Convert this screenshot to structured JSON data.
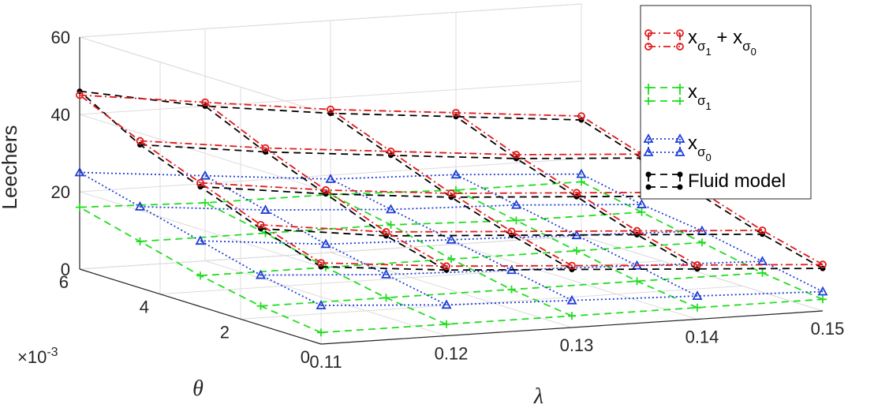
{
  "chart_data": {
    "type": "line",
    "chart_kind": "3d-line",
    "title": "",
    "xlabel": "λ",
    "ylabel": "θ",
    "zlabel": "Leechers",
    "y_exponent": "×10",
    "y_exponent_power": "-3",
    "x_ticks": [
      "0.11",
      "0.12",
      "0.13",
      "0.14",
      "0.15"
    ],
    "y_ticks": [
      "0",
      "2",
      "4",
      "6"
    ],
    "z_ticks": [
      "0",
      "20",
      "40",
      "60"
    ],
    "xlim": [
      0.11,
      0.15
    ],
    "ylim": [
      0,
      6
    ],
    "zlim": [
      0,
      60
    ],
    "grid": true,
    "legend_position": "top-right",
    "lambda": [
      0.11,
      0.12,
      0.13,
      0.14,
      0.15
    ],
    "theta": [
      0,
      1.5,
      3,
      4.5,
      6
    ],
    "series": [
      {
        "name": "x_σ1 + x_σ0",
        "legend": {
          "base": "x",
          "sub1": "σ",
          "sub2": "1",
          "mid": " + x",
          "sub3": "σ",
          "sub4": "0"
        },
        "color": "#e41a1c",
        "marker": "circle",
        "line_style": "dash-dot",
        "values": [
          [
            21,
            18,
            16,
            14,
            12
          ],
          [
            26,
            22,
            20,
            18,
            16
          ],
          [
            32,
            28,
            25,
            23,
            21
          ],
          [
            38,
            34,
            31,
            28,
            26
          ],
          [
            45,
            41,
            37,
            34,
            31
          ]
        ]
      },
      {
        "name": "x_σ1",
        "legend": {
          "base": "x",
          "sub1": "σ",
          "sub2": "1"
        },
        "color": "#22dd22",
        "marker": "plus",
        "line_style": "dashed",
        "values": [
          [
            3,
            3,
            3,
            3,
            3
          ],
          [
            5,
            5,
            5,
            5,
            5
          ],
          [
            8,
            8,
            8,
            8,
            8
          ],
          [
            12,
            12,
            12,
            11,
            11
          ],
          [
            16,
            15,
            15,
            14,
            14
          ]
        ]
      },
      {
        "name": "x_σ0",
        "legend": {
          "base": "x",
          "sub1": "σ",
          "sub2": "0"
        },
        "color": "#1f3fd6",
        "marker": "triangle",
        "line_style": "dotted",
        "values": [
          [
            10,
            8,
            7,
            6,
            5
          ],
          [
            13,
            11,
            10,
            9,
            8
          ],
          [
            17,
            14,
            13,
            12,
            11
          ],
          [
            21,
            18,
            16,
            15,
            13
          ],
          [
            25,
            22,
            19,
            18,
            16
          ]
        ]
      },
      {
        "name": "Fluid model",
        "legend": {
          "base": "Fluid model"
        },
        "color": "#000000",
        "marker": "dot",
        "line_style": "dashed",
        "values": [
          [
            20,
            17,
            15,
            13,
            11
          ],
          [
            25,
            21,
            19,
            17,
            15
          ],
          [
            31,
            27,
            24,
            22,
            20
          ],
          [
            37,
            33,
            30,
            27,
            25
          ],
          [
            46,
            40,
            36,
            33,
            30
          ]
        ]
      }
    ]
  }
}
